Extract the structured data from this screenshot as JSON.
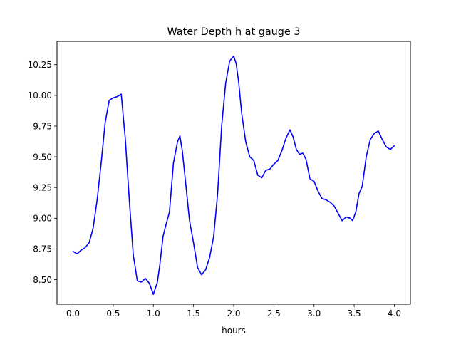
{
  "chart_data": {
    "type": "line",
    "title": "Water Depth h at gauge 3",
    "xlabel": "hours",
    "ylabel": "",
    "xlim": [
      -0.2,
      4.2
    ],
    "ylim": [
      8.3,
      10.44
    ],
    "x_ticks": [
      "0.0",
      "0.5",
      "1.0",
      "1.5",
      "2.0",
      "2.5",
      "3.0",
      "3.5",
      "4.0"
    ],
    "y_ticks": [
      "8.50",
      "8.75",
      "9.00",
      "9.25",
      "9.50",
      "9.75",
      "10.00",
      "10.25"
    ],
    "grid": false,
    "legend": "none",
    "series": [
      {
        "color": "#0000ff",
        "x": [
          0.0,
          0.05,
          0.1,
          0.15,
          0.2,
          0.25,
          0.3,
          0.35,
          0.4,
          0.45,
          0.5,
          0.55,
          0.6,
          0.65,
          0.7,
          0.75,
          0.8,
          0.85,
          0.9,
          0.95,
          1.0,
          1.05,
          1.08,
          1.12,
          1.15,
          1.2,
          1.25,
          1.3,
          1.33,
          1.36,
          1.4,
          1.45,
          1.5,
          1.55,
          1.6,
          1.65,
          1.7,
          1.75,
          1.8,
          1.85,
          1.9,
          1.95,
          2.0,
          2.03,
          2.06,
          2.1,
          2.15,
          2.2,
          2.25,
          2.3,
          2.35,
          2.4,
          2.45,
          2.5,
          2.55,
          2.6,
          2.65,
          2.7,
          2.74,
          2.78,
          2.82,
          2.86,
          2.9,
          2.95,
          3.0,
          3.05,
          3.1,
          3.15,
          3.2,
          3.25,
          3.3,
          3.35,
          3.4,
          3.45,
          3.48,
          3.52,
          3.56,
          3.6,
          3.65,
          3.7,
          3.75,
          3.8,
          3.85,
          3.9,
          3.95,
          4.0
        ],
        "y": [
          8.73,
          8.71,
          8.74,
          8.76,
          8.8,
          8.92,
          9.15,
          9.45,
          9.78,
          9.96,
          9.98,
          9.99,
          10.01,
          9.65,
          9.15,
          8.7,
          8.49,
          8.48,
          8.51,
          8.47,
          8.38,
          8.48,
          8.62,
          8.85,
          8.93,
          9.05,
          9.45,
          9.62,
          9.67,
          9.55,
          9.3,
          8.98,
          8.8,
          8.6,
          8.54,
          8.58,
          8.68,
          8.85,
          9.2,
          9.75,
          10.1,
          10.28,
          10.32,
          10.26,
          10.12,
          9.85,
          9.62,
          9.5,
          9.47,
          9.35,
          9.33,
          9.39,
          9.4,
          9.44,
          9.47,
          9.55,
          9.65,
          9.72,
          9.66,
          9.56,
          9.52,
          9.53,
          9.48,
          9.32,
          9.3,
          9.22,
          9.16,
          9.15,
          9.13,
          9.1,
          9.04,
          8.98,
          9.01,
          9.0,
          8.98,
          9.05,
          9.2,
          9.26,
          9.5,
          9.64,
          9.69,
          9.71,
          9.64,
          9.58,
          9.56,
          9.59
        ]
      }
    ]
  }
}
